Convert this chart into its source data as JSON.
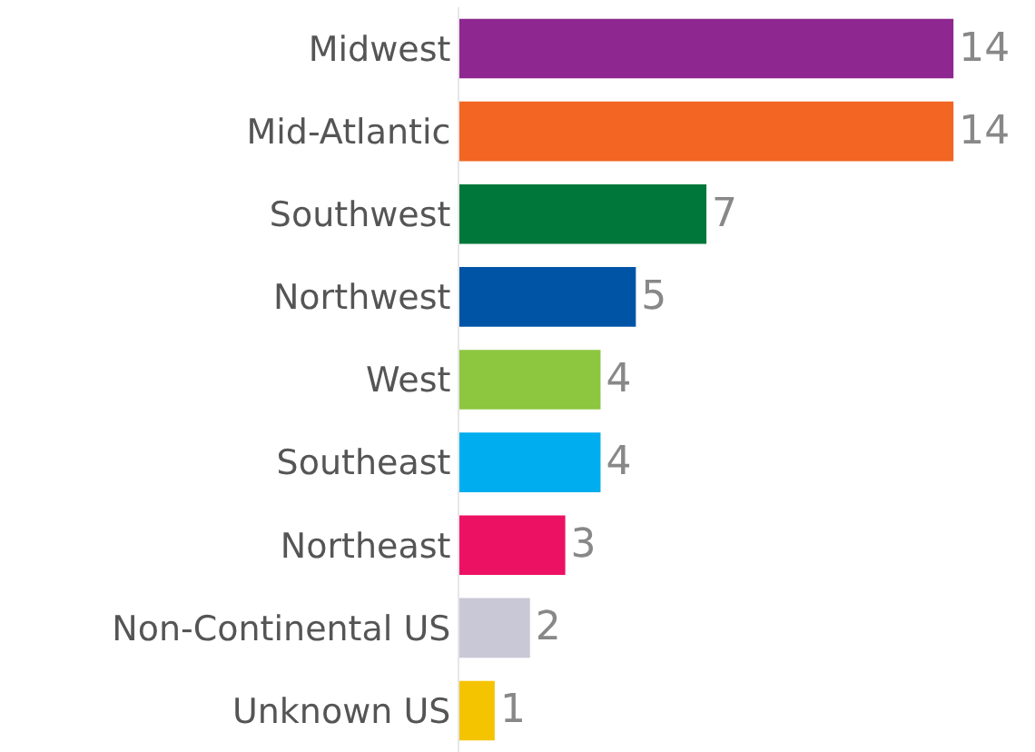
{
  "chart_data": {
    "type": "bar",
    "orientation": "horizontal",
    "data_labels": true,
    "categories": [
      "Midwest",
      "Mid-Atlantic",
      "Southwest",
      "Northwest",
      "West",
      "Southeast",
      "Northeast",
      "Non-Continental US",
      "Unknown US"
    ],
    "values": [
      14,
      14,
      7,
      5,
      4,
      4,
      3,
      2,
      1
    ],
    "colors": [
      "#8e278f",
      "#f26522",
      "#00773a",
      "#0054a6",
      "#8dc63f",
      "#00aeef",
      "#ed1164",
      "#c8c8d6",
      "#f5c400"
    ]
  }
}
